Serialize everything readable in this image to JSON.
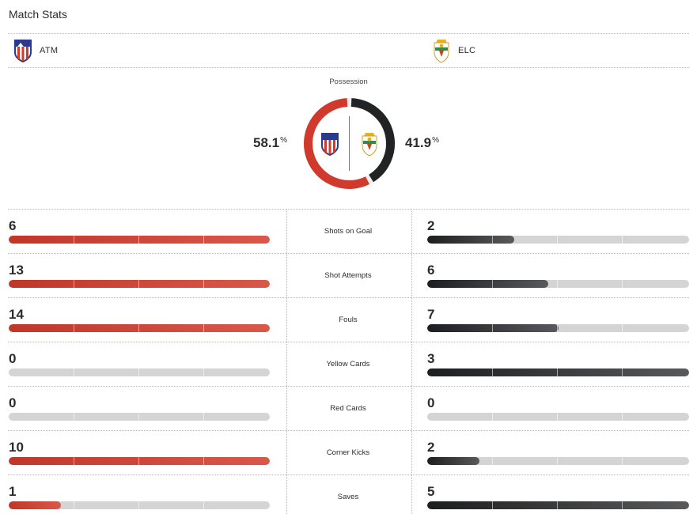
{
  "section_title": "Match Stats",
  "teams": {
    "home": {
      "abbr": "ATM",
      "logo_icon": "atletico-madrid-crest-icon",
      "color": "#d03a2c"
    },
    "away": {
      "abbr": "ELC",
      "logo_icon": "elche-crest-icon",
      "color": "#222324"
    }
  },
  "possession": {
    "label": "Possession",
    "home_value": "58.1",
    "away_value": "41.9",
    "unit": "%"
  },
  "stats": [
    {
      "label": "Shots on Goal",
      "home": "6",
      "away": "2",
      "home_fill": 1.0,
      "away_fill": 0.333
    },
    {
      "label": "Shot Attempts",
      "home": "13",
      "away": "6",
      "home_fill": 1.0,
      "away_fill": 0.462
    },
    {
      "label": "Fouls",
      "home": "14",
      "away": "7",
      "home_fill": 1.0,
      "away_fill": 0.5
    },
    {
      "label": "Yellow Cards",
      "home": "0",
      "away": "3",
      "home_fill": 0.0,
      "away_fill": 1.0
    },
    {
      "label": "Red Cards",
      "home": "0",
      "away": "0",
      "home_fill": 0.0,
      "away_fill": 0.0
    },
    {
      "label": "Corner Kicks",
      "home": "10",
      "away": "2",
      "home_fill": 1.0,
      "away_fill": 0.2
    },
    {
      "label": "Saves",
      "home": "1",
      "away": "5",
      "home_fill": 0.2,
      "away_fill": 1.0
    }
  ]
}
